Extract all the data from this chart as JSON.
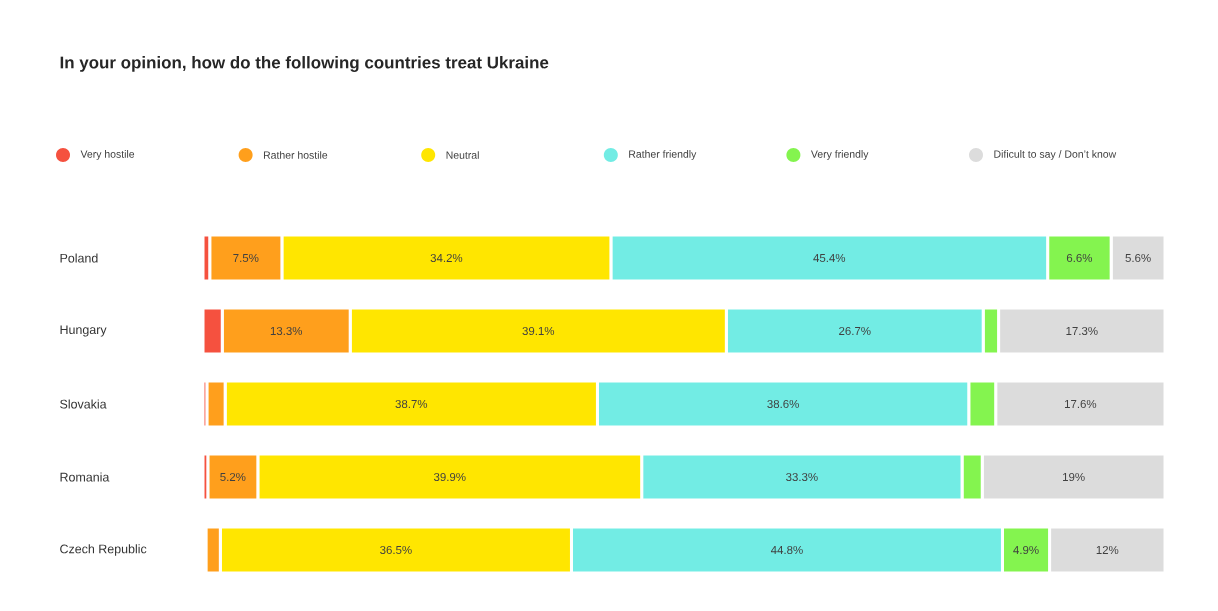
{
  "chart_data": {
    "type": "bar",
    "orientation": "horizontal",
    "stacked": true,
    "legend": "top",
    "title": "In your opinion, how do the following countries treat Ukraine",
    "categories": [
      "Poland",
      "Hungary",
      "Slovakia",
      "Romania",
      "Czech Republic"
    ],
    "series": [
      {
        "name": "Very hostile",
        "color": "#f5513f",
        "values": [
          0.7,
          2.0,
          0.4,
          0.5,
          0.3
        ],
        "value_labels": [
          null,
          null,
          null,
          null,
          null
        ]
      },
      {
        "name": "Rather hostile",
        "color": "#ff9f1c",
        "values": [
          7.5,
          13.3,
          1.9,
          5.2,
          1.5
        ],
        "value_labels": [
          "7.5%",
          "13.3%",
          null,
          "5.2%",
          null
        ]
      },
      {
        "name": "Neutral",
        "color": "#ffe600",
        "values": [
          34.2,
          39.1,
          38.7,
          39.9,
          36.5
        ],
        "value_labels": [
          "34.2%",
          "39.1%",
          "38.7%",
          "39.9%",
          "36.5%"
        ]
      },
      {
        "name": "Rather friendly",
        "color": "#72ece4",
        "values": [
          45.4,
          26.7,
          38.6,
          33.3,
          44.8
        ],
        "value_labels": [
          "45.4%",
          "26.7%",
          "38.6%",
          "33.3%",
          "44.8%"
        ]
      },
      {
        "name": "Very friendly",
        "color": "#84f44f",
        "values": [
          6.6,
          1.6,
          2.8,
          2.1,
          4.9
        ],
        "value_labels": [
          "6.6%",
          null,
          null,
          null,
          "4.9%"
        ]
      },
      {
        "name": "Dificult to say / Don’t know",
        "color": "#dcdcdc",
        "values": [
          5.6,
          17.3,
          17.6,
          19,
          12
        ],
        "value_labels": [
          "5.6%",
          "17.3%",
          "17.6%",
          "19%",
          "12%"
        ]
      }
    ]
  }
}
